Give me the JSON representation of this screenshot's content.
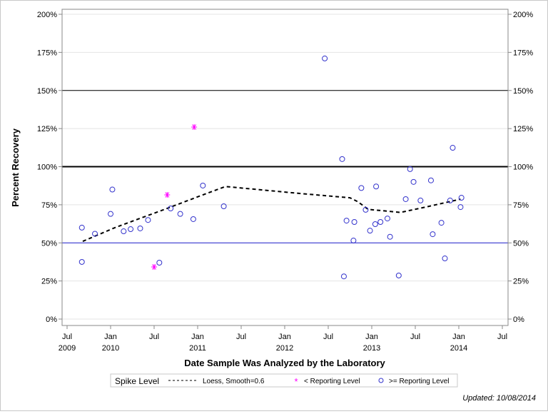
{
  "chart_data": {
    "type": "scatter",
    "xlabel": "Date Sample Was Analyzed by the Laboratory",
    "ylabel": "Percent Recovery",
    "xlim": [
      2009.5,
      2014.5
    ],
    "ylim": [
      0,
      200
    ],
    "x_ticks": [
      {
        "value": 2009.5,
        "line1": "Jul",
        "line2": "2009"
      },
      {
        "value": 2010.0,
        "line1": "Jan",
        "line2": "2010"
      },
      {
        "value": 2010.5,
        "line1": "Jul",
        "line2": ""
      },
      {
        "value": 2011.0,
        "line1": "Jan",
        "line2": "2011"
      },
      {
        "value": 2011.5,
        "line1": "Jul",
        "line2": ""
      },
      {
        "value": 2012.0,
        "line1": "Jan",
        "line2": "2012"
      },
      {
        "value": 2012.5,
        "line1": "Jul",
        "line2": ""
      },
      {
        "value": 2013.0,
        "line1": "Jan",
        "line2": "2013"
      },
      {
        "value": 2013.5,
        "line1": "Jul",
        "line2": ""
      },
      {
        "value": 2014.0,
        "line1": "Jan",
        "line2": "2014"
      },
      {
        "value": 2014.5,
        "line1": "Jul",
        "line2": ""
      }
    ],
    "y_ticks": [
      {
        "value": 0,
        "label": "0%"
      },
      {
        "value": 25,
        "label": "25%"
      },
      {
        "value": 50,
        "label": "50%"
      },
      {
        "value": 75,
        "label": "75%"
      },
      {
        "value": 100,
        "label": "100%"
      },
      {
        "value": 125,
        "label": "125%"
      },
      {
        "value": 150,
        "label": "150%"
      },
      {
        "value": 175,
        "label": "175%"
      },
      {
        "value": 200,
        "label": "200%"
      }
    ],
    "grid": true,
    "reference_lines": [
      {
        "value": 150,
        "color": "#000000",
        "weight": "thin"
      },
      {
        "value": 100,
        "color": "#000000",
        "weight": "thick"
      },
      {
        "value": 50,
        "color": "#2020d0",
        "weight": "thin"
      }
    ],
    "series": [
      {
        "name": ">= Reporting Level",
        "marker": "circle",
        "color": "#3333cc",
        "points": [
          [
            2009.67,
            60
          ],
          [
            2009.67,
            37.5
          ],
          [
            2009.82,
            56
          ],
          [
            2010.0,
            69
          ],
          [
            2010.02,
            85
          ],
          [
            2010.15,
            57.6
          ],
          [
            2010.23,
            59
          ],
          [
            2010.34,
            59.5
          ],
          [
            2010.43,
            65
          ],
          [
            2010.56,
            37
          ],
          [
            2010.69,
            72.6
          ],
          [
            2010.8,
            69
          ],
          [
            2010.95,
            65.6
          ],
          [
            2011.06,
            87.6
          ],
          [
            2011.3,
            74
          ],
          [
            2012.46,
            171
          ],
          [
            2012.66,
            105
          ],
          [
            2012.68,
            28
          ],
          [
            2012.71,
            64.6
          ],
          [
            2012.79,
            51.5
          ],
          [
            2012.8,
            63.7
          ],
          [
            2012.88,
            86
          ],
          [
            2012.93,
            71.7
          ],
          [
            2012.98,
            58
          ],
          [
            2013.04,
            62.3
          ],
          [
            2013.05,
            87
          ],
          [
            2013.1,
            63.7
          ],
          [
            2013.18,
            66
          ],
          [
            2013.21,
            54
          ],
          [
            2013.31,
            28.6
          ],
          [
            2013.39,
            78.7
          ],
          [
            2013.44,
            98.4
          ],
          [
            2013.48,
            90
          ],
          [
            2013.56,
            77.8
          ],
          [
            2013.68,
            91
          ],
          [
            2013.7,
            55.7
          ],
          [
            2013.8,
            63.2
          ],
          [
            2013.84,
            39.8
          ],
          [
            2013.9,
            77.8
          ],
          [
            2013.93,
            112.4
          ],
          [
            2014.02,
            73.5
          ],
          [
            2014.03,
            79.6
          ]
        ]
      },
      {
        "name": "< Reporting Level",
        "marker": "star",
        "color": "#ff00ff",
        "points": [
          [
            2010.5,
            34.2
          ],
          [
            2010.65,
            81.5
          ],
          [
            2010.96,
            126
          ]
        ]
      },
      {
        "name": "Loess, Smooth=0.6",
        "marker": "dashed-line",
        "color": "#000000",
        "points": [
          [
            2009.68,
            51
          ],
          [
            2010.05,
            60
          ],
          [
            2010.62,
            72
          ],
          [
            2010.99,
            80
          ],
          [
            2011.32,
            87
          ],
          [
            2012.18,
            82.4
          ],
          [
            2012.75,
            79.6
          ],
          [
            2012.84,
            77
          ],
          [
            2012.96,
            72
          ],
          [
            2013.33,
            70
          ],
          [
            2013.66,
            74
          ],
          [
            2014.02,
            78.7
          ]
        ]
      }
    ],
    "legend": {
      "placement": "bottom",
      "title": "Spike Level",
      "entries": [
        "Loess, Smooth=0.6",
        "< Reporting Level",
        ">= Reporting Level"
      ]
    },
    "footnote": "Updated: 10/08/2014"
  }
}
